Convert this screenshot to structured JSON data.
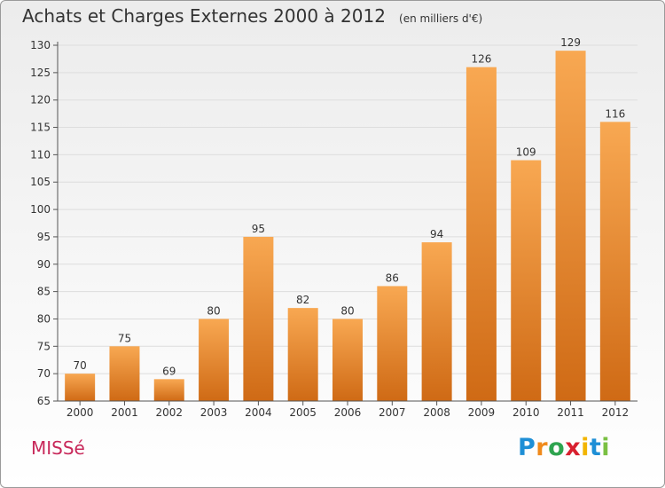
{
  "header": {
    "title": "Achats et Charges Externes 2000 à 2012",
    "subtitle": "(en milliers d'€)"
  },
  "footer": {
    "commune": "MISSé",
    "logo": {
      "letters": [
        "P",
        "r",
        "o",
        "x",
        "i",
        "t",
        "i"
      ],
      "colors": [
        "#1e8fd6",
        "#f08a1c",
        "#2ea44f",
        "#d8202f",
        "#f2b500",
        "#1e8fd6",
        "#7ac043"
      ]
    }
  },
  "colors": {
    "bar_top": "#f8a852",
    "bar_bottom": "#cf6a15",
    "axis": "#555555",
    "grid": "#dddddd"
  },
  "chart_data": {
    "type": "bar",
    "title": "Achats et Charges Externes 2000 à 2012",
    "subtitle": "(en milliers d'€)",
    "categories": [
      "2000",
      "2001",
      "2002",
      "2003",
      "2004",
      "2005",
      "2006",
      "2007",
      "2008",
      "2009",
      "2010",
      "2011",
      "2012"
    ],
    "values": [
      70,
      75,
      69,
      80,
      95,
      82,
      80,
      86,
      94,
      126,
      109,
      129,
      116
    ],
    "value_labels": [
      "70",
      "75",
      "69",
      "80",
      "95",
      "82",
      "80",
      "86",
      "94",
      "126",
      "109",
      "129",
      "116"
    ],
    "ylim": [
      65,
      130
    ],
    "yticks": [
      65,
      70,
      75,
      80,
      85,
      90,
      95,
      100,
      105,
      110,
      115,
      120,
      125,
      130
    ],
    "ytick_labels": [
      "65",
      "70",
      "75",
      "80",
      "85",
      "90",
      "95",
      "100",
      "105",
      "110",
      "115",
      "120",
      "125",
      "130"
    ],
    "grid": true
  }
}
